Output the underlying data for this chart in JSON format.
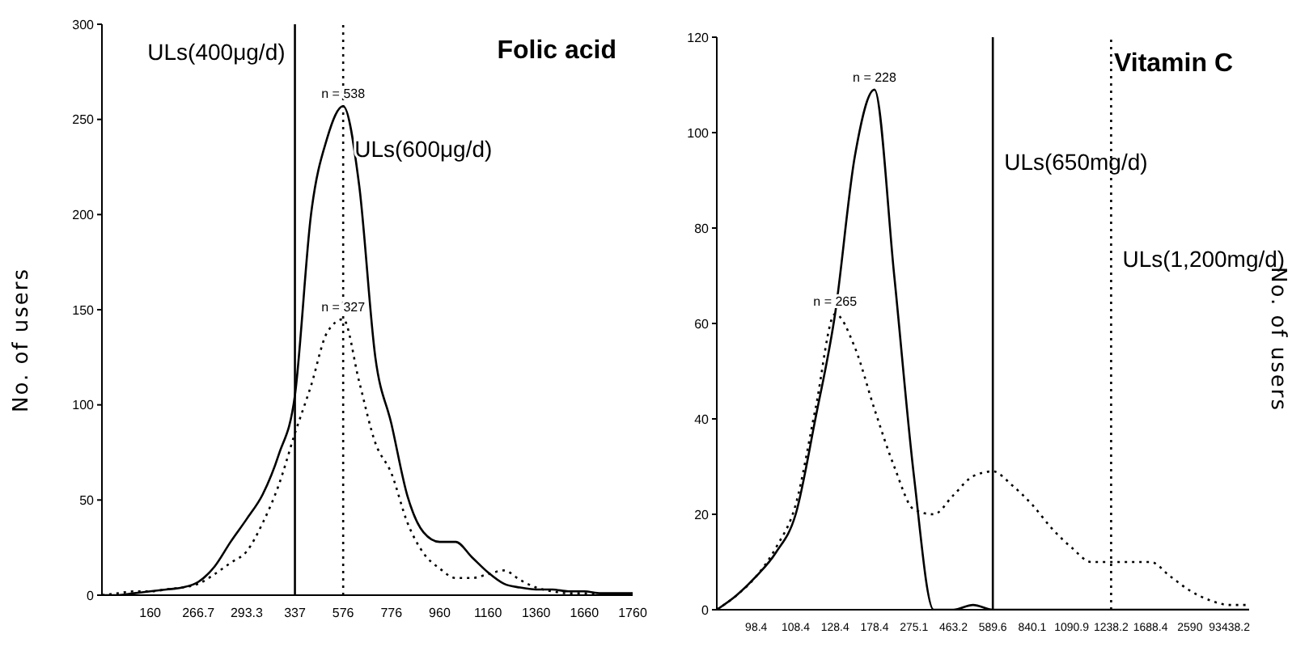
{
  "chart_data": [
    {
      "type": "line",
      "title": "Folic acid",
      "ylabel": "No. of users",
      "categories": [
        null,
        null,
        null,
        "160",
        null,
        null,
        "266.7",
        null,
        null,
        "293.3",
        null,
        null,
        "337",
        null,
        null,
        "576",
        null,
        null,
        "776",
        null,
        null,
        "960",
        null,
        null,
        "1160",
        null,
        null,
        "1360",
        null,
        null,
        "1660",
        null,
        null,
        "1760"
      ],
      "series": [
        {
          "color": "#000000",
          "line_style": "solid",
          "values": [
            0,
            0,
            1,
            2,
            3,
            4,
            7,
            15,
            28,
            40,
            53,
            74,
            105,
            200,
            240,
            257,
            215,
            125,
            90,
            52,
            33,
            28,
            28,
            20,
            12,
            6,
            4,
            3,
            3,
            2,
            2,
            1,
            1,
            1
          ]
        },
        {
          "color": "#000000",
          "line_style": "dotted",
          "values": [
            0,
            1,
            2,
            2,
            3,
            4,
            6,
            11,
            17,
            23,
            38,
            58,
            85,
            110,
            138,
            145,
            112,
            80,
            64,
            38,
            22,
            14,
            9,
            9,
            11,
            13,
            8,
            4,
            2,
            1,
            1,
            0,
            0,
            0
          ]
        }
      ],
      "ylim": [
        0,
        300
      ],
      "yticks": [
        0,
        50,
        100,
        150,
        200,
        250,
        300
      ],
      "marker": "none",
      "ref_lines": [
        {
          "axis": "x",
          "value": "337",
          "label": "ULs(400μg/d)",
          "line_style": "solid",
          "color": "#000000"
        },
        {
          "axis": "x",
          "value": "576",
          "label": "ULs(600μg/d)",
          "line_style": "dotted",
          "color": "#000000"
        }
      ],
      "annotations": [
        {
          "text": "n = 538",
          "x": "576",
          "y": 257
        },
        {
          "text": "n = 327",
          "x": "576",
          "y": 145
        }
      ]
    },
    {
      "type": "line",
      "title": "Vitamin C",
      "ylabel": "No. of users",
      "categories": [
        null,
        null,
        "98.4",
        null,
        "108.4",
        null,
        "128.4",
        null,
        "178.4",
        null,
        "275.1",
        null,
        "463.2",
        null,
        "589.6",
        null,
        "840.1",
        null,
        "1090.9",
        null,
        "1238.2",
        null,
        "1688.4",
        null,
        "2590",
        null,
        "93438.2",
        null
      ],
      "series": [
        {
          "color": "#000000",
          "line_style": "solid",
          "values": [
            0,
            3,
            7,
            12,
            20,
            40,
            62,
            95,
            109,
            70,
            28,
            0,
            0,
            1,
            0,
            0,
            0,
            0,
            0,
            0,
            0,
            0,
            0,
            0,
            0,
            0,
            0,
            0
          ]
        },
        {
          "color": "#000000",
          "line_style": "dotted",
          "values": [
            0,
            3,
            7,
            13,
            22,
            42,
            62,
            55,
            42,
            30,
            21,
            20,
            24,
            28,
            29,
            26,
            22,
            17,
            13,
            10,
            10,
            10,
            10,
            7,
            4,
            2,
            1,
            1
          ]
        }
      ],
      "ylim": [
        0,
        120
      ],
      "yticks": [
        0,
        20,
        40,
        60,
        80,
        100,
        120
      ],
      "marker": "none",
      "ref_lines": [
        {
          "axis": "x",
          "value": "589.6",
          "label": "ULs(650mg/d)",
          "line_style": "solid",
          "color": "#000000"
        },
        {
          "axis": "x",
          "value": "1238.2",
          "label": "ULs(1,200mg/d)",
          "line_style": "dotted",
          "color": "#000000"
        }
      ],
      "annotations": [
        {
          "text": "n = 228",
          "x": "178.4",
          "y": 109
        },
        {
          "text": "n = 265",
          "x": "128.4",
          "y": 62
        }
      ]
    }
  ]
}
